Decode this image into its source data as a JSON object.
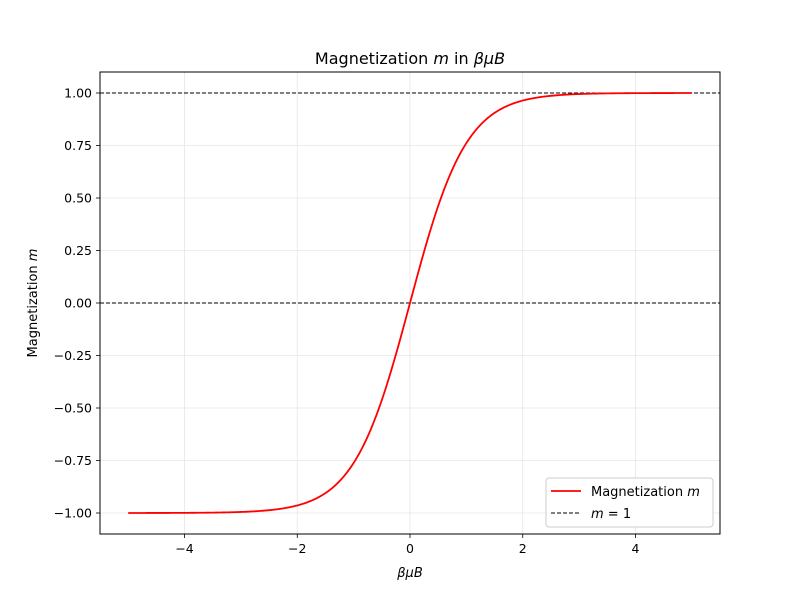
{
  "chart_data": {
    "type": "line",
    "title": "Magnetization m in βμB",
    "xlabel": "βμB",
    "ylabel": "Magnetization m",
    "xlim": [
      -5.5,
      5.5
    ],
    "ylim": [
      -1.1,
      1.1
    ],
    "xticks": [
      -4,
      -2,
      0,
      2,
      4
    ],
    "xtick_labels": [
      "−4",
      "−2",
      "0",
      "2",
      "4"
    ],
    "yticks": [
      -1.0,
      -0.75,
      -0.5,
      -0.25,
      0.0,
      0.25,
      0.5,
      0.75,
      1.0
    ],
    "ytick_labels": [
      "−1.00",
      "−0.75",
      "−0.50",
      "−0.25",
      "0.00",
      "0.25",
      "0.50",
      "0.75",
      "1.00"
    ],
    "grid": true,
    "legend_position": "lower-right",
    "series": [
      {
        "name": "Magnetization m",
        "color": "#ff0000",
        "style": "solid",
        "function": "tanh",
        "x_range": [
          -5,
          5
        ],
        "x": [
          -5,
          -4,
          -3,
          -2.5,
          -2,
          -1.5,
          -1,
          -0.5,
          0,
          0.5,
          1,
          1.5,
          2,
          2.5,
          3,
          4,
          5
        ],
        "y": [
          -0.9999,
          -0.9993,
          -0.9951,
          -0.9866,
          -0.964,
          -0.9051,
          -0.7616,
          -0.4621,
          0,
          0.4621,
          0.7616,
          0.9051,
          0.964,
          0.9866,
          0.9951,
          0.9993,
          0.9999
        ]
      }
    ],
    "reference_lines": [
      {
        "name": "m = 1",
        "y": 1,
        "color": "#000000",
        "style": "dashed",
        "in_legend": true
      },
      {
        "name": "",
        "y": 0,
        "color": "#000000",
        "style": "dashed",
        "in_legend": false
      }
    ]
  }
}
